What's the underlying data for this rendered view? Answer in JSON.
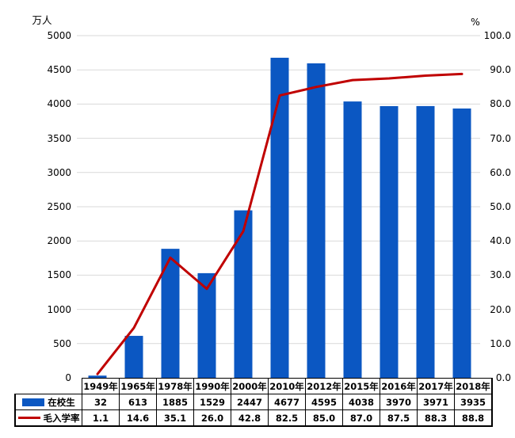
{
  "chart": {
    "left_axis_title": "万人",
    "right_axis_title": "%"
  },
  "chart_data": {
    "type": "bar",
    "title": "",
    "subtitle": "",
    "categories": [
      "1949年",
      "1965年",
      "1978年",
      "1990年",
      "2000年",
      "2010年",
      "2012年",
      "2015年",
      "2016年",
      "2017年",
      "2018年"
    ],
    "series": [
      {
        "name": "在校生",
        "type": "bar",
        "axis": "left",
        "color": "#0B57C2",
        "values": [
          32,
          613,
          1885,
          1529,
          2447,
          4677,
          4595,
          4038,
          3970,
          3971,
          3935
        ]
      },
      {
        "name": "毛入学率",
        "type": "line",
        "axis": "right",
        "color": "#C00000",
        "values": [
          1.1,
          14.6,
          35.1,
          26.0,
          42.8,
          82.5,
          85.0,
          87.0,
          87.5,
          88.3,
          88.8
        ]
      }
    ],
    "left_axis": {
      "title": "万人",
      "min": 0,
      "max": 5000,
      "step": 500,
      "decimals": 0
    },
    "right_axis": {
      "title": "%",
      "min": 0,
      "max": 100,
      "step": 10,
      "decimals": 1
    },
    "grid": true,
    "gridline_color": "#D9D9D9",
    "legend_position": "bottom-table"
  }
}
